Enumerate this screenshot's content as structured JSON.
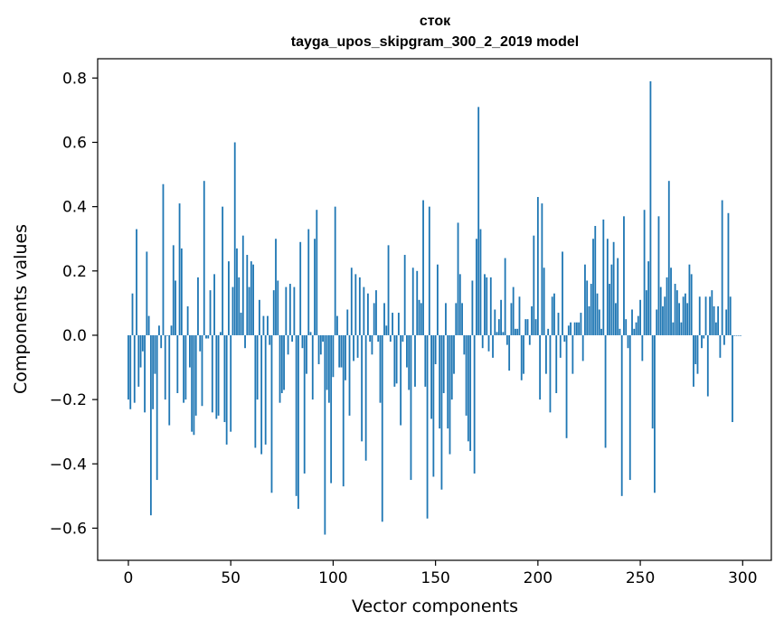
{
  "chart_data": {
    "type": "bar",
    "title": "сток",
    "subtitle": "tayga_upos_skipgram_300_2_2019 model",
    "xlabel": "Vector components",
    "ylabel": "Components values",
    "xlim": [
      -15,
      314
    ],
    "ylim": [
      -0.7,
      0.86
    ],
    "x_ticks": [
      0,
      50,
      100,
      150,
      200,
      250,
      300
    ],
    "y_ticks": [
      -0.6,
      -0.4,
      -0.2,
      0.0,
      0.2,
      0.4,
      0.6,
      0.8
    ],
    "x_tick_labels": [
      "0",
      "50",
      "100",
      "150",
      "200",
      "250",
      "300"
    ],
    "y_tick_labels": [
      "−0.6",
      "−0.4",
      "−0.2",
      "0.0",
      "0.2",
      "0.4",
      "0.6",
      "0.8"
    ],
    "bar_color": "#1f77b4",
    "grid": false,
    "values": [
      -0.2,
      -0.23,
      0.13,
      -0.21,
      0.33,
      -0.16,
      -0.1,
      -0.05,
      -0.24,
      0.26,
      0.06,
      -0.56,
      -0.23,
      -0.12,
      -0.45,
      0.03,
      -0.04,
      0.47,
      -0.2,
      0.0,
      -0.28,
      0.03,
      0.28,
      0.17,
      -0.18,
      0.41,
      0.27,
      -0.21,
      -0.2,
      0.09,
      -0.1,
      -0.3,
      -0.31,
      -0.25,
      0.18,
      -0.05,
      -0.22,
      0.48,
      -0.01,
      -0.01,
      0.14,
      -0.24,
      0.19,
      -0.26,
      -0.25,
      0.01,
      0.4,
      -0.27,
      -0.34,
      0.23,
      -0.3,
      0.15,
      0.6,
      0.27,
      0.18,
      0.07,
      0.31,
      -0.04,
      0.25,
      0.15,
      0.23,
      0.22,
      -0.35,
      -0.2,
      0.11,
      -0.37,
      0.06,
      -0.34,
      0.06,
      -0.03,
      -0.49,
      0.14,
      0.3,
      0.17,
      -0.21,
      -0.18,
      -0.17,
      0.15,
      -0.06,
      0.16,
      -0.02,
      0.15,
      -0.5,
      -0.54,
      0.29,
      -0.04,
      -0.43,
      -0.12,
      0.33,
      0.01,
      -0.2,
      0.3,
      0.39,
      -0.09,
      -0.06,
      -0.02,
      -0.62,
      -0.17,
      -0.21,
      -0.46,
      -0.13,
      0.4,
      0.06,
      -0.1,
      -0.1,
      -0.47,
      -0.14,
      0.08,
      -0.25,
      0.21,
      -0.08,
      0.19,
      -0.07,
      0.18,
      -0.33,
      0.15,
      -0.39,
      0.13,
      -0.02,
      -0.06,
      0.1,
      0.14,
      -0.02,
      -0.21,
      -0.58,
      0.1,
      0.03,
      0.28,
      -0.02,
      0.07,
      -0.16,
      -0.15,
      0.07,
      -0.28,
      -0.02,
      0.25,
      -0.1,
      -0.17,
      -0.45,
      0.21,
      -0.16,
      0.2,
      0.11,
      0.1,
      0.42,
      -0.16,
      -0.57,
      0.4,
      -0.26,
      -0.44,
      -0.09,
      0.22,
      -0.29,
      -0.48,
      -0.18,
      0.1,
      -0.29,
      -0.37,
      -0.2,
      -0.12,
      0.1,
      0.35,
      0.19,
      0.1,
      -0.06,
      -0.25,
      -0.33,
      -0.36,
      0.17,
      -0.43,
      0.3,
      0.71,
      0.33,
      -0.04,
      0.19,
      0.18,
      -0.05,
      0.18,
      -0.07,
      0.08,
      0.01,
      0.05,
      0.11,
      0.01,
      0.24,
      -0.03,
      -0.11,
      0.1,
      0.15,
      0.02,
      0.02,
      0.12,
      -0.14,
      -0.12,
      0.05,
      0.05,
      -0.03,
      0.09,
      0.31,
      0.05,
      0.43,
      -0.2,
      0.41,
      0.21,
      -0.12,
      0.02,
      -0.24,
      0.12,
      0.13,
      -0.18,
      0.07,
      -0.07,
      0.26,
      -0.02,
      -0.32,
      0.03,
      0.04,
      -0.12,
      0.04,
      0.04,
      0.04,
      0.07,
      -0.08,
      0.22,
      0.17,
      0.09,
      0.16,
      0.3,
      0.34,
      0.13,
      0.08,
      0.02,
      0.36,
      -0.35,
      0.3,
      0.16,
      0.22,
      0.29,
      0.1,
      0.24,
      0.02,
      -0.5,
      0.37,
      0.05,
      -0.04,
      -0.45,
      0.08,
      0.02,
      0.04,
      0.06,
      0.11,
      -0.08,
      0.39,
      0.14,
      0.23,
      0.79,
      -0.29,
      -0.49,
      0.08,
      0.37,
      0.15,
      0.09,
      0.12,
      0.18,
      0.48,
      0.21,
      0.04,
      0.16,
      0.14,
      0.1,
      0.04,
      0.12,
      0.13,
      0.1,
      0.22,
      0.19,
      -0.16,
      -0.09,
      -0.12,
      0.12,
      -0.04,
      -0.01,
      0.12,
      -0.19,
      0.12,
      0.14,
      0.09,
      0.04,
      0.09,
      -0.07,
      0.42,
      -0.03,
      0.08,
      0.38,
      0.12,
      -0.27,
      0.0,
      0.0,
      0.0,
      0.0
    ]
  }
}
